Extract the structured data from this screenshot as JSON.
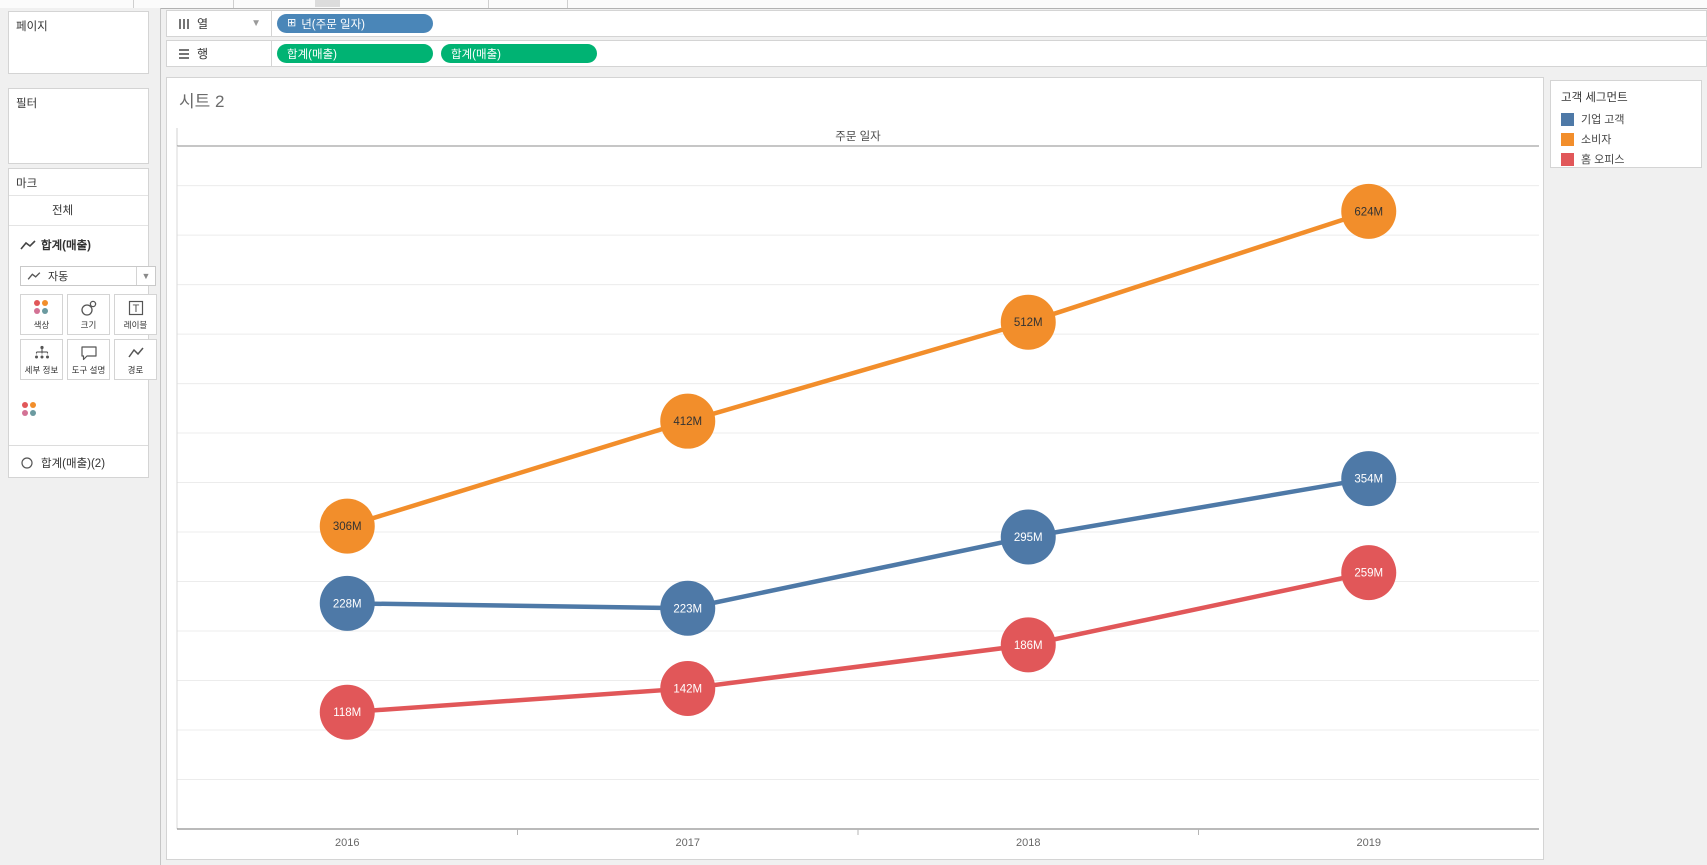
{
  "left_panel": {
    "pages_title": "페이지",
    "filters_title": "필터",
    "marks": {
      "title": "마크",
      "all_label": "전체",
      "card1_label": "합계(매출)",
      "mark_type_selected": "자동",
      "buttons": [
        "색상",
        "크기",
        "레이블",
        "세부 정보",
        "도구 설명",
        "경로"
      ],
      "encoding_pill": "고객 세그먼트",
      "card2_label": "합계(매출)(2)"
    }
  },
  "shelves": {
    "columns_label": "열",
    "rows_label": "행",
    "columns_pills": [
      {
        "label": "년(주문 일자)",
        "icon": "plus-box-icon",
        "glyph": "⊞",
        "color": "#4a86b8"
      }
    ],
    "rows_pills": [
      {
        "label": "합계(매출)",
        "color": "#00b373"
      },
      {
        "label": "합계(매출)",
        "color": "#00b373"
      }
    ]
  },
  "sheet": {
    "title": "시트 2"
  },
  "legend": {
    "title": "고객 세그먼트",
    "items": [
      {
        "label": "기업 고객",
        "color": "#4e79a7"
      },
      {
        "label": "소비자",
        "color": "#f28e2b"
      },
      {
        "label": "홈 오피스",
        "color": "#e15759"
      }
    ]
  },
  "chart_data": {
    "type": "line",
    "title": "시트 2",
    "xlabel": "주문 일자",
    "x": [
      "2016",
      "2017",
      "2018",
      "2019"
    ],
    "unit": "M",
    "ylim": [
      0,
      690
    ],
    "gridline_step": 50,
    "grid": true,
    "legend_position": "right",
    "series": [
      {
        "name": "소비자",
        "color": "#f28e2b",
        "label_color": "#333333",
        "values": [
          306,
          412,
          512,
          624
        ],
        "labels": [
          "306M",
          "412M",
          "512M",
          "624M"
        ]
      },
      {
        "name": "기업 고객",
        "color": "#4e79a7",
        "label_color": "#ffffff",
        "values": [
          228,
          223,
          295,
          354
        ],
        "labels": [
          "228M",
          "223M",
          "295M",
          "354M"
        ]
      },
      {
        "name": "홈 오피스",
        "color": "#e15759",
        "label_color": "#ffffff",
        "values": [
          118,
          142,
          186,
          259
        ],
        "labels": [
          "118M",
          "142M",
          "186M",
          "259M"
        ]
      }
    ]
  }
}
